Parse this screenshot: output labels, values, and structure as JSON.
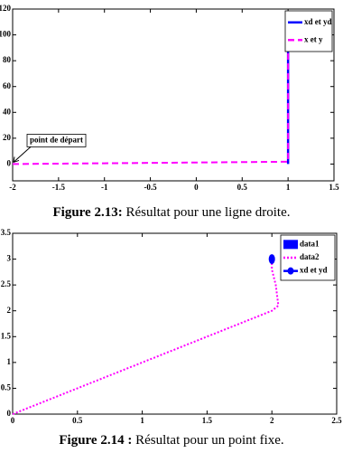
{
  "chart_data": [
    {
      "type": "line",
      "xlim": [
        -2,
        1.5
      ],
      "xticks": [
        -2,
        -1.5,
        -1,
        -0.5,
        0,
        0.5,
        1,
        1.5
      ],
      "ylim": [
        -13,
        120
      ],
      "yticks": [
        0,
        20,
        40,
        60,
        80,
        100,
        120
      ],
      "legend": "upper right",
      "series": [
        {
          "name": "xd et yd",
          "color": "#0000ff",
          "line": "solid",
          "x": [
            1,
            1
          ],
          "values": [
            0,
            100
          ]
        },
        {
          "name": "x et y",
          "color": "#ff00ff",
          "line": "dashed",
          "x": [
            -2,
            -1,
            0,
            1,
            1
          ],
          "values": [
            0,
            0.6,
            1.2,
            1.8,
            100
          ]
        }
      ],
      "annotation": {
        "text": "point de départ",
        "x": -2,
        "y": 0
      }
    },
    {
      "type": "line",
      "xlim": [
        0,
        2.5
      ],
      "xticks": [
        0,
        0.5,
        1,
        1.5,
        2,
        2.5
      ],
      "ylim": [
        0,
        3.5
      ],
      "yticks": [
        0,
        0.5,
        1,
        1.5,
        2,
        2.5,
        3,
        3.5
      ],
      "legend": "upper right",
      "series": [
        {
          "name": "data1",
          "color": "#0000ff",
          "line": "patch",
          "x": [],
          "values": []
        },
        {
          "name": "data2",
          "color": "#ff00ff",
          "line": "dotted",
          "x": [
            0,
            1,
            2,
            2.05,
            2.03,
            2,
            2
          ],
          "values": [
            0,
            1,
            2,
            2.1,
            2.5,
            2.8,
            3
          ]
        },
        {
          "name": "xd et yd",
          "color": "#0000ff",
          "line": "marker",
          "x": [
            2
          ],
          "values": [
            3
          ]
        }
      ]
    }
  ],
  "captions": [
    {
      "label": "Figure 2.13:",
      "text": " Résultat pour une ligne droite."
    },
    {
      "label": "Figure 2.14 :",
      "text": " Résultat pour un point fixe."
    }
  ]
}
